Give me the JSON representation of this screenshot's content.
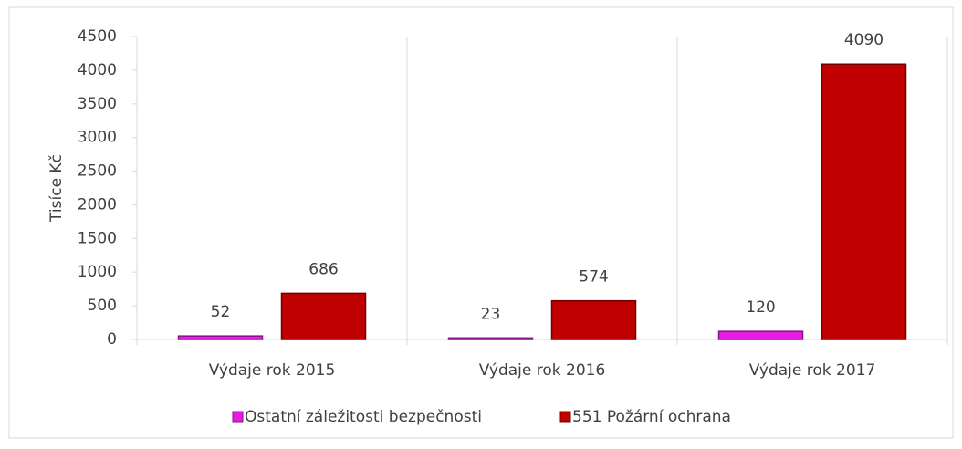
{
  "chart_data": {
    "type": "bar",
    "y_label": "Tisíce Kč",
    "categories": [
      "Výdaje rok 2015",
      "Výdaje rok 2016",
      "Výdaje rok 2017"
    ],
    "series": [
      {
        "name": "Ostatní záležitosti bezpečnosti",
        "color": "#e21ee2",
        "values": [
          52,
          23,
          120
        ]
      },
      {
        "name": "551 Požární ochrana",
        "color": "#c00000",
        "values": [
          686,
          574,
          4090
        ]
      }
    ],
    "ylim": [
      0,
      4500
    ],
    "yticks": [
      0,
      500,
      1000,
      1500,
      2000,
      2500,
      3000,
      3500,
      4000,
      4500
    ],
    "legend": "bottom"
  }
}
